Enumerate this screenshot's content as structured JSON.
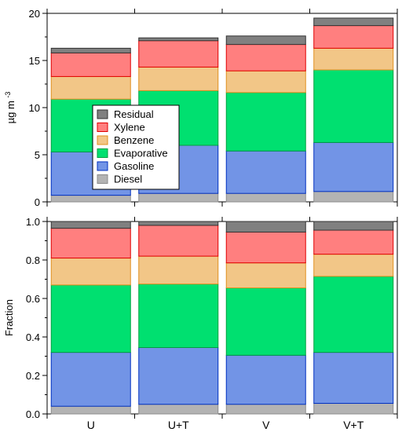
{
  "chart_data": [
    {
      "type": "bar",
      "stacked": true,
      "panel": "top",
      "ylabel": "µg m",
      "ylabel_superscript": "-3",
      "ylim": [
        0,
        20
      ],
      "yticks": [
        "0",
        "5",
        "10",
        "15",
        "20"
      ],
      "categories": [
        "U",
        "U+T",
        "V",
        "V+T"
      ],
      "series": [
        {
          "name": "Diesel",
          "values": [
            0.7,
            0.9,
            0.9,
            1.1
          ]
        },
        {
          "name": "Gasoline",
          "values": [
            4.6,
            5.1,
            4.5,
            5.2
          ]
        },
        {
          "name": "Evaporative",
          "values": [
            5.6,
            5.8,
            6.2,
            7.7
          ]
        },
        {
          "name": "Benzene",
          "values": [
            2.4,
            2.5,
            2.3,
            2.3
          ]
        },
        {
          "name": "Xylene",
          "values": [
            2.5,
            2.8,
            2.8,
            2.4
          ]
        },
        {
          "name": "Residual",
          "values": [
            0.5,
            0.3,
            0.9,
            0.8
          ]
        }
      ],
      "colors": {
        "Diesel": "#b3b3b3",
        "Gasoline": "#7294e6",
        "Evaporative": "#00e070",
        "Benzene": "#f2c687",
        "Xylene": "#ff7f7f",
        "Residual": "#808080"
      },
      "legend_order": [
        "Residual",
        "Xylene",
        "Benzene",
        "Evaporative",
        "Gasoline",
        "Diesel"
      ],
      "legend_placement": "left-center"
    },
    {
      "type": "bar",
      "stacked": true,
      "panel": "bottom",
      "ylabel": "Fraction",
      "ylim": [
        0,
        1.0
      ],
      "yticks": [
        "0.0",
        "0.2",
        "0.4",
        "0.6",
        "0.8",
        "1.0"
      ],
      "categories": [
        "U",
        "U+T",
        "V",
        "V+T"
      ],
      "series": [
        {
          "name": "Diesel",
          "values": [
            0.04,
            0.05,
            0.05,
            0.055
          ]
        },
        {
          "name": "Gasoline",
          "values": [
            0.28,
            0.295,
            0.255,
            0.265
          ]
        },
        {
          "name": "Evaporative",
          "values": [
            0.35,
            0.33,
            0.35,
            0.395
          ]
        },
        {
          "name": "Benzene",
          "values": [
            0.14,
            0.145,
            0.13,
            0.115
          ]
        },
        {
          "name": "Xylene",
          "values": [
            0.155,
            0.16,
            0.16,
            0.125
          ]
        },
        {
          "name": "Residual",
          "values": [
            0.035,
            0.02,
            0.055,
            0.045
          ]
        }
      ]
    }
  ]
}
